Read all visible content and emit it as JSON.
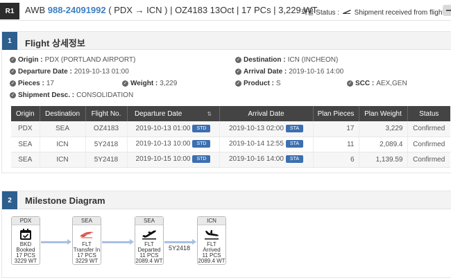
{
  "header": {
    "badge": "R1",
    "awb_prefix": "AWB",
    "awb_number": "988-24091992",
    "route_summary": "( PDX → ICN ) | OZ4183 13Oct | 17 PCs | 3,229 WT",
    "status_label": "화물 Status :",
    "status_text": "Shipment received from flight"
  },
  "flight_panel": {
    "number": "1",
    "title": "Flight 상세정보",
    "info": {
      "origin_label": "Origin :",
      "origin_value": "PDX (PORTLAND AIRPORT)",
      "destination_label": "Destination :",
      "destination_value": "ICN (INCHEON)",
      "departure_label": "Departure Date :",
      "departure_value": "2019-10-13 01:00",
      "arrival_label": "Arrival Date :",
      "arrival_value": "2019-10-16 14:00",
      "pieces_label": "Pieces :",
      "pieces_value": "17",
      "weight_label": "Weight :",
      "weight_value": "3,229",
      "product_label": "Product :",
      "product_value": "S",
      "scc_label": "SCC :",
      "scc_value": "AEX,GEN",
      "shipment_label": "Shipment Desc. :",
      "shipment_value": "CONSOLIDATION"
    },
    "table": {
      "headers": [
        "Origin",
        "Destination",
        "Flight No.",
        "Departure Date",
        "Arrival Date",
        "Plan Pieces",
        "Plan Weight",
        "Status"
      ],
      "std_tag": "STD",
      "sta_tag": "STA",
      "rows": [
        {
          "origin": "PDX",
          "destination": "SEA",
          "flight": "OZ4183",
          "departure": "2019-10-13 01:00",
          "arrival": "2019-10-13 02:00",
          "pieces": "17",
          "weight": "3,229",
          "status": "Confirmed"
        },
        {
          "origin": "SEA",
          "destination": "ICN",
          "flight": "5Y2418",
          "departure": "2019-10-13 10:00",
          "arrival": "2019-10-14 12:55",
          "pieces": "11",
          "weight": "2,089.4",
          "status": "Confirmed"
        },
        {
          "origin": "SEA",
          "destination": "ICN",
          "flight": "5Y2418",
          "departure": "2019-10-15 10:00",
          "arrival": "2019-10-16 14:00",
          "pieces": "6",
          "weight": "1,139.59",
          "status": "Confirmed"
        }
      ]
    }
  },
  "milestone_panel": {
    "number": "2",
    "title": "Milestone Diagram",
    "flight_label": "5Y2418",
    "milestones": [
      {
        "station": "PDX",
        "icon": "calendar-check-icon",
        "lines": [
          "BKD",
          "Booked",
          "17 PCS",
          "3229 WT"
        ]
      },
      {
        "station": "SEA",
        "icon": "airline-logo-icon",
        "lines": [
          "FLT",
          "Transfer In",
          "17 PCS",
          "3229 WT"
        ]
      },
      {
        "station": "SEA",
        "icon": "plane-departure-icon",
        "lines": [
          "FLT",
          "Departed",
          "11 PCS",
          "2089.4 WT"
        ]
      },
      {
        "station": "ICN",
        "icon": "plane-arrival-icon",
        "lines": [
          "FLT",
          "Arrived",
          "11 PCS",
          "2089.4 WT"
        ]
      }
    ]
  },
  "colors": {
    "panel_number_bg": "#2d5f8f",
    "awb_number": "#3a7fc1",
    "table_header": "#444444",
    "tag": "#3b6fb0",
    "arrow": "#a7c0e2"
  }
}
